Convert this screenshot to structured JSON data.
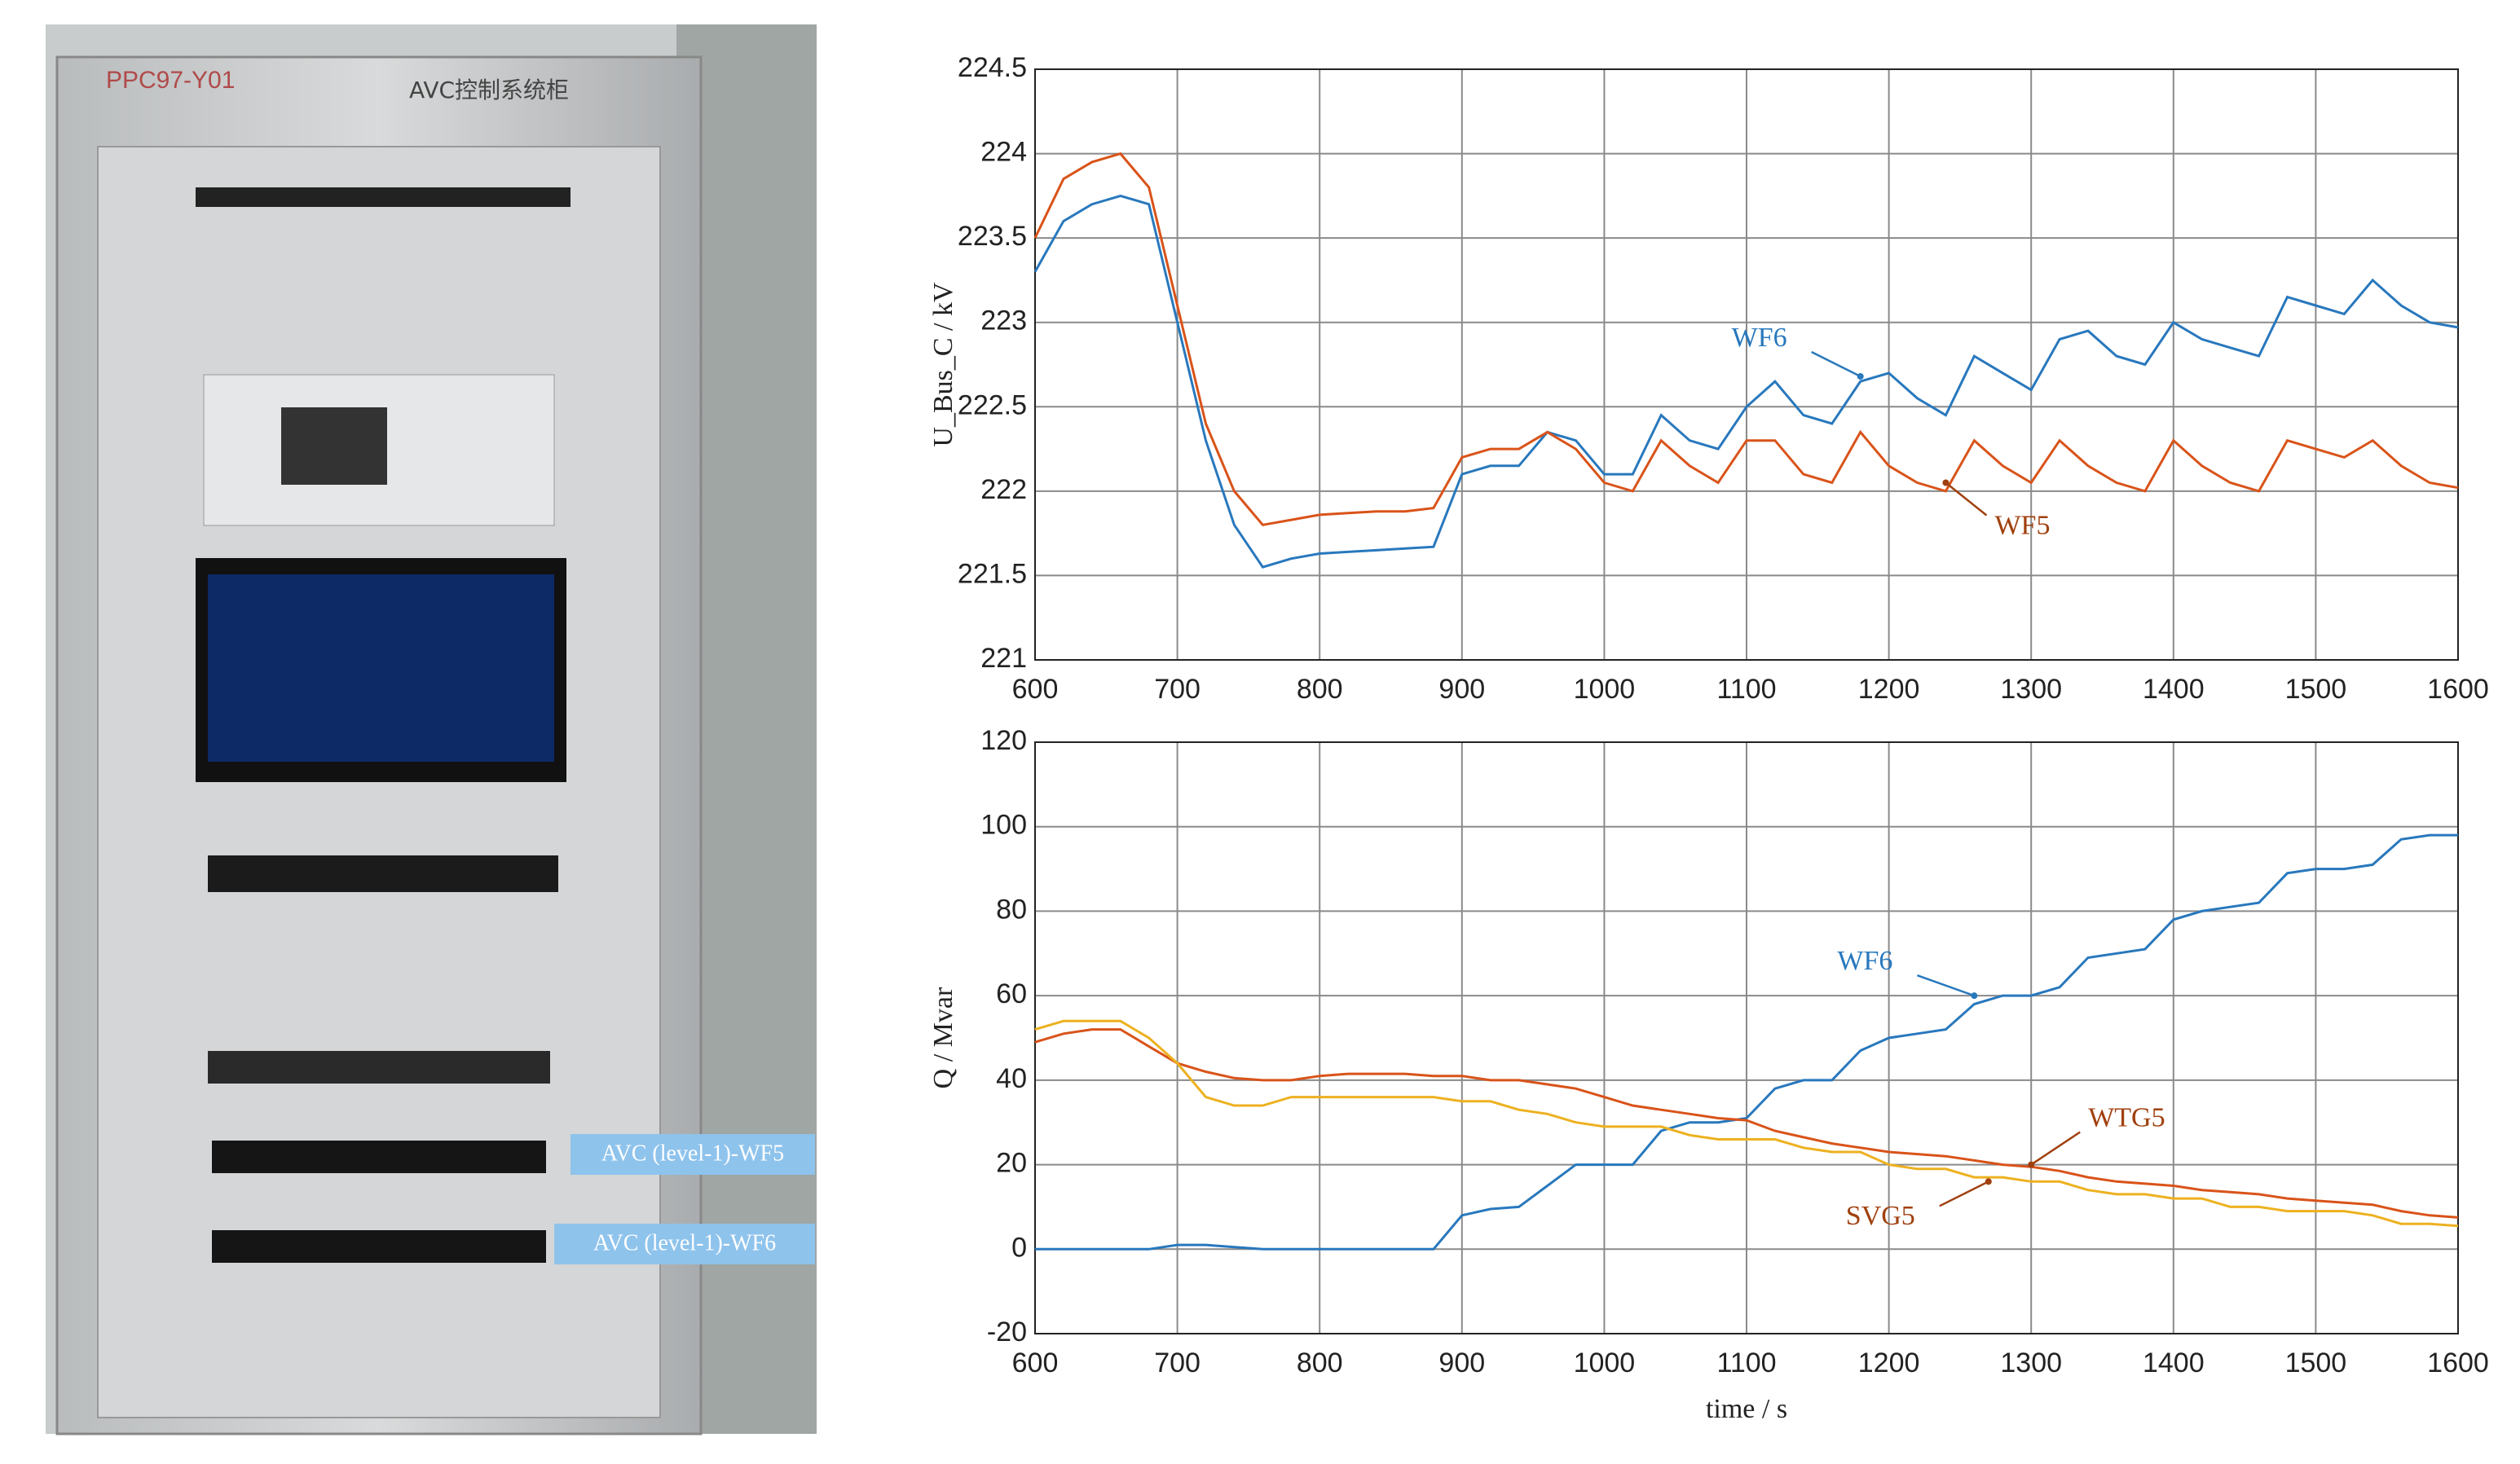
{
  "photo": {
    "cabinet_id": "PPC97-Y01",
    "cabinet_name": "AVC控制系统柜",
    "label_wf5": "AVC (level-1)-WF5",
    "label_wf6": "AVC (level-1)-WF6"
  },
  "chart_data": [
    {
      "type": "line",
      "ylabel": "U_Bus_C / kV",
      "x": [
        600,
        620,
        640,
        660,
        680,
        700,
        720,
        740,
        760,
        780,
        800,
        820,
        840,
        860,
        880,
        900,
        920,
        940,
        960,
        980,
        1000,
        1020,
        1040,
        1060,
        1080,
        1100,
        1120,
        1140,
        1160,
        1180,
        1200,
        1220,
        1240,
        1260,
        1280,
        1300,
        1320,
        1340,
        1360,
        1380,
        1400,
        1420,
        1440,
        1460,
        1480,
        1500,
        1520,
        1540,
        1560,
        1580,
        1600
      ],
      "series": [
        {
          "color": "#2878bd",
          "values": [
            223.3,
            223.6,
            223.7,
            223.75,
            223.7,
            223.0,
            222.3,
            221.8,
            221.55,
            221.6,
            221.63,
            221.64,
            221.65,
            221.66,
            221.67,
            222.1,
            222.15,
            222.15,
            222.35,
            222.3,
            222.1,
            222.1,
            222.45,
            222.3,
            222.25,
            222.5,
            222.65,
            222.45,
            222.4,
            222.65,
            222.7,
            222.55,
            222.45,
            222.8,
            222.7,
            222.6,
            222.9,
            222.95,
            222.8,
            222.75,
            223.0,
            222.9,
            222.85,
            222.8,
            223.15,
            223.1,
            223.05,
            223.25,
            223.1,
            223.0,
            222.97
          ]
        },
        {
          "color": "#d95319",
          "values": [
            223.5,
            223.85,
            223.95,
            224.0,
            223.8,
            223.1,
            222.4,
            222.0,
            221.8,
            221.83,
            221.86,
            221.87,
            221.88,
            221.88,
            221.9,
            222.2,
            222.25,
            222.25,
            222.35,
            222.25,
            222.05,
            222.0,
            222.3,
            222.15,
            222.05,
            222.3,
            222.3,
            222.1,
            222.05,
            222.35,
            222.15,
            222.05,
            222.0,
            222.3,
            222.15,
            222.05,
            222.3,
            222.15,
            222.05,
            222.0,
            222.3,
            222.15,
            222.05,
            222.0,
            222.3,
            222.25,
            222.2,
            222.3,
            222.15,
            222.05,
            222.02
          ]
        }
      ],
      "annotations": [
        {
          "text": "WF6",
          "x": 1180,
          "y": 222.68,
          "color": "#2878bd"
        },
        {
          "text": "WF5",
          "x": 1240,
          "y": 222.05,
          "color": "#a0400e"
        }
      ],
      "xlim": [
        600,
        1600
      ],
      "ylim": [
        221,
        224.5
      ],
      "xticks": [
        600,
        700,
        800,
        900,
        1000,
        1100,
        1200,
        1300,
        1400,
        1500,
        1600
      ],
      "yticks": [
        221,
        221.5,
        222,
        222.5,
        223,
        223.5,
        224,
        224.5
      ],
      "grid": true
    },
    {
      "type": "line",
      "ylabel": "Q / Mvar",
      "xlabel": "time / s",
      "x": [
        600,
        620,
        640,
        660,
        680,
        700,
        720,
        740,
        760,
        780,
        800,
        820,
        840,
        860,
        880,
        900,
        920,
        940,
        960,
        980,
        1000,
        1020,
        1040,
        1060,
        1080,
        1100,
        1120,
        1140,
        1160,
        1180,
        1200,
        1220,
        1240,
        1260,
        1280,
        1300,
        1320,
        1340,
        1360,
        1380,
        1400,
        1420,
        1440,
        1460,
        1480,
        1500,
        1520,
        1540,
        1560,
        1580,
        1600
      ],
      "series": [
        {
          "color": "#2878bd",
          "values": [
            0,
            0,
            0,
            0,
            0,
            1,
            1,
            0.5,
            0,
            0,
            0,
            0,
            0,
            0,
            0,
            8,
            9.5,
            10,
            15,
            20,
            20,
            20,
            28,
            30,
            30,
            31,
            38,
            40,
            40,
            47,
            50,
            51,
            52,
            58,
            60,
            60,
            62,
            69,
            70,
            71,
            78,
            80,
            81,
            82,
            89,
            90,
            90,
            91,
            97,
            98,
            98
          ]
        },
        {
          "color": "#d95319",
          "values": [
            49,
            51,
            52,
            52,
            48,
            44,
            42,
            40.5,
            40,
            40,
            41,
            41.5,
            41.5,
            41.5,
            41,
            41,
            40,
            40,
            39,
            38,
            36,
            34,
            33,
            32,
            31,
            30.5,
            28,
            26.5,
            25,
            24,
            23,
            22.5,
            22,
            21,
            20,
            19.5,
            18.5,
            17,
            16,
            15.5,
            15,
            14,
            13.5,
            13,
            12,
            11.5,
            11,
            10.5,
            9,
            8,
            7.5
          ]
        },
        {
          "color": "#edb120",
          "values": [
            52,
            54,
            54,
            54,
            50,
            44,
            36,
            34,
            34,
            36,
            36,
            36,
            36,
            36,
            36,
            35,
            35,
            33,
            32,
            30,
            29,
            29,
            29,
            27,
            26,
            26,
            26,
            24,
            23,
            23,
            20,
            19,
            19,
            17,
            17,
            16,
            16,
            14,
            13,
            13,
            12,
            12,
            10,
            10,
            9,
            9,
            9,
            8,
            6,
            6,
            5.5
          ]
        }
      ],
      "annotations": [
        {
          "text": "WF6",
          "x": 1260,
          "y": 60,
          "color": "#2878bd"
        },
        {
          "text": "WTG5",
          "x": 1300,
          "y": 20,
          "color": "#a0400e"
        },
        {
          "text": "SVG5",
          "x": 1270,
          "y": 16,
          "color": "#a0400e"
        }
      ],
      "xlim": [
        600,
        1600
      ],
      "ylim": [
        -20,
        120
      ],
      "xticks": [
        600,
        700,
        800,
        900,
        1000,
        1100,
        1200,
        1300,
        1400,
        1500,
        1600
      ],
      "yticks": [
        -20,
        0,
        20,
        40,
        60,
        80,
        100,
        120
      ],
      "grid": true
    }
  ]
}
